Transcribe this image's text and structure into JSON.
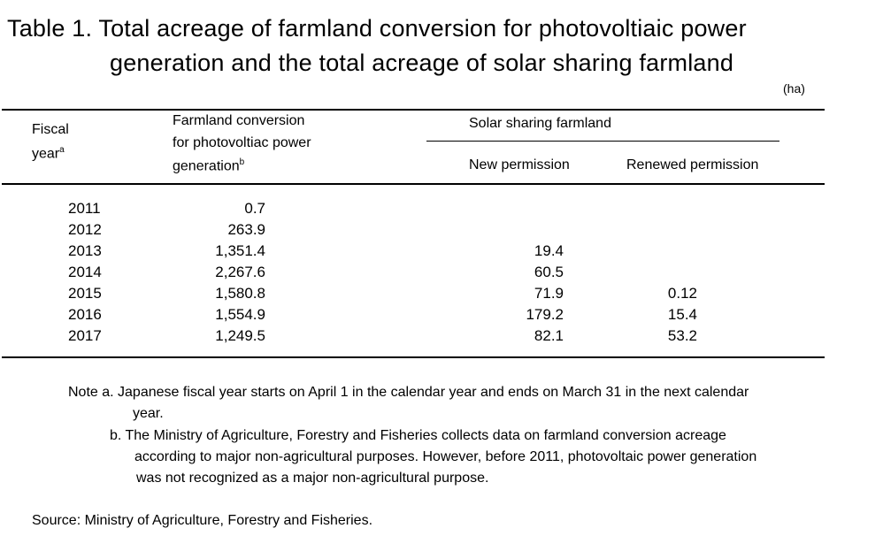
{
  "title": {
    "line1": "Table 1. Total acreage of farmland conversion for photovoltiaic power",
    "line2": "generation and the total acreage of solar sharing farmland"
  },
  "unit": "(ha)",
  "header": {
    "col1": {
      "line1": "Fiscal",
      "line2": "year",
      "sup": "a"
    },
    "col2": {
      "line1": "Farmland conversion",
      "line2": "for photovoltiac power",
      "line3": "generation",
      "sup": "b"
    },
    "group": "Solar sharing farmland",
    "col3": "New permission",
    "col4": "Renewed permission"
  },
  "rows": [
    {
      "year": "2011",
      "conversion": "0.7",
      "new": "",
      "renewed": ""
    },
    {
      "year": "2012",
      "conversion": "263.9",
      "new": "",
      "renewed": ""
    },
    {
      "year": "2013",
      "conversion": "1,351.4",
      "new": "19.4",
      "renewed": ""
    },
    {
      "year": "2014",
      "conversion": "2,267.6",
      "new": "60.5",
      "renewed": ""
    },
    {
      "year": "2015",
      "conversion": "1,580.8",
      "new": "71.9",
      "renewed": "0.12"
    },
    {
      "year": "2016",
      "conversion": "1,554.9",
      "new": "179.2",
      "renewed": "15.4"
    },
    {
      "year": "2017",
      "conversion": "1,249.5",
      "new": "82.1",
      "renewed": "53.2"
    }
  ],
  "notes": {
    "a_line1": "Note a. Japanese fiscal year starts on April 1 in the calendar year and ends on March 31 in the next calendar",
    "a_line2": "year.",
    "b_line1": "b. The Ministry of Agriculture, Forestry and Fisheries collects data on farmland conversion acreage",
    "b_line2": "according to major non-agricultural purposes. However, before 2011, photovoltaic power generation",
    "b_line3": "was not recognized as a major non-agricultural purpose."
  },
  "source": "Source:  Ministry of Agriculture, Forestry and Fisheries."
}
